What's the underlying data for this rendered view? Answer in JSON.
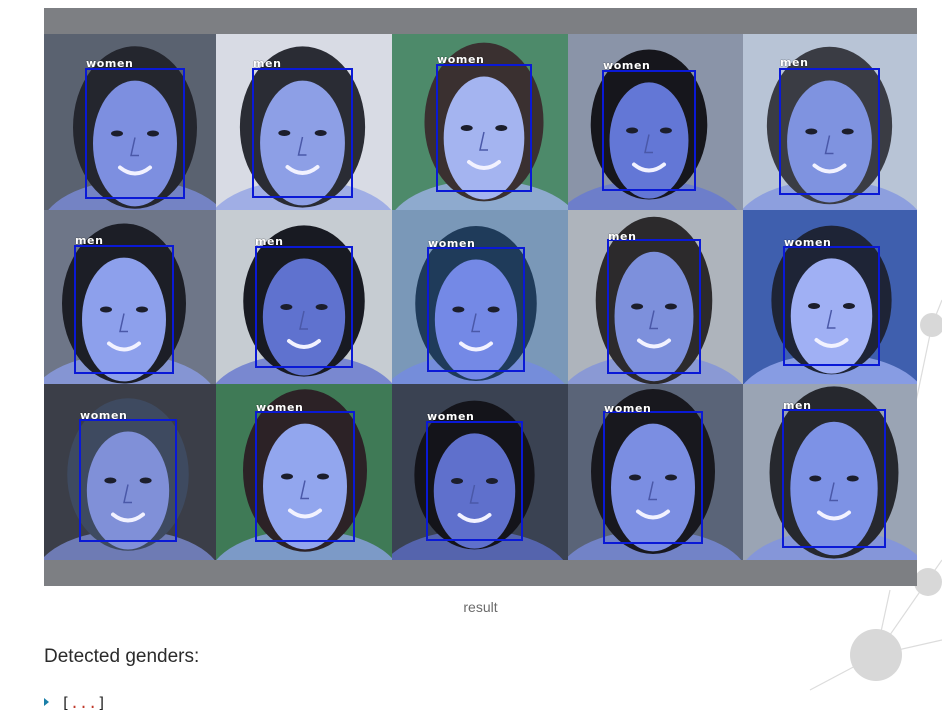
{
  "figure": {
    "caption": "result",
    "box_color": "#0a19d6",
    "faces": [
      {
        "label": "women",
        "bg": "#5a6270",
        "skin": "#7d8fe0",
        "hair": "#24262e"
      },
      {
        "label": "men",
        "bg": "#d8dbe4",
        "skin": "#8d9fe6",
        "hair": "#2a2c34"
      },
      {
        "label": "women",
        "bg": "#4d8a6a",
        "skin": "#a4b4f0",
        "hair": "#3a3030"
      },
      {
        "label": "women",
        "bg": "#8a94a8",
        "skin": "#6377d6",
        "hair": "#16161c"
      },
      {
        "label": "men",
        "bg": "#b8c4d6",
        "skin": "#7f93e0",
        "hair": "#3a3c44"
      },
      {
        "label": "men",
        "bg": "#6e7688",
        "skin": "#8da0ec",
        "hair": "#1c1e26"
      },
      {
        "label": "men",
        "bg": "#c6ccd2",
        "skin": "#5f72cf",
        "hair": "#181a22"
      },
      {
        "label": "women",
        "bg": "#7a98b8",
        "skin": "#7489e6",
        "hair": "#1f3b5a"
      },
      {
        "label": "men",
        "bg": "#aeb4bc",
        "skin": "#7d90dc",
        "hair": "#2c2a2c"
      },
      {
        "label": "women",
        "bg": "#3f5fae",
        "skin": "#a0b0f4",
        "hair": "#1e2436"
      },
      {
        "label": "women",
        "bg": "#3b3e48",
        "skin": "#8090d8",
        "hair": "#3e4a60"
      },
      {
        "label": "women",
        "bg": "#3f7a56",
        "skin": "#92a6ee",
        "hair": "#2c2226"
      },
      {
        "label": "women",
        "bg": "#3a4252",
        "skin": "#5f70cc",
        "hair": "#14141a"
      },
      {
        "label": "women",
        "bg": "#5a6478",
        "skin": "#7b8ee2",
        "hair": "#18181e"
      },
      {
        "label": "men",
        "bg": "#9aa4b4",
        "skin": "#7d92e6",
        "hair": "#26282e"
      }
    ]
  },
  "section_title": "Detected genders:",
  "output": {
    "open": "[",
    "dots": "...",
    "close": "]"
  }
}
